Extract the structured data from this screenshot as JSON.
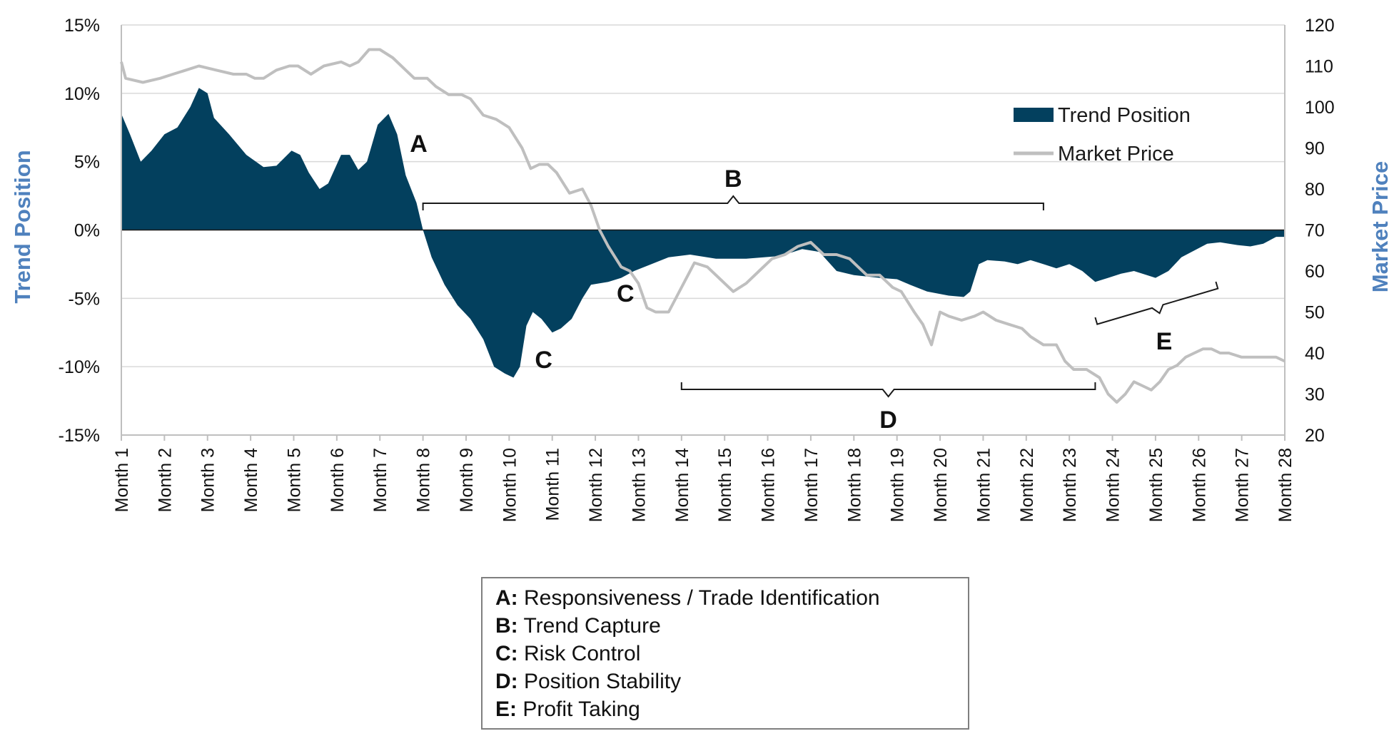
{
  "chart_data": {
    "type": "area+line",
    "x_categories": [
      "Month 1",
      "Month 2",
      "Month 3",
      "Month 4",
      "Month 5",
      "Month 6",
      "Month 7",
      "Month 8",
      "Month 9",
      "Month 10",
      "Month 11",
      "Month 12",
      "Month 13",
      "Month 14",
      "Month 15",
      "Month 16",
      "Month 17",
      "Month 18",
      "Month 19",
      "Month 20",
      "Month 21",
      "Month 22",
      "Month 23",
      "Month 24",
      "Month 25",
      "Month 26",
      "Month 27",
      "Month 28"
    ],
    "left_axis": {
      "label": "Trend Position",
      "ylim": [
        -0.15,
        0.15
      ],
      "ticks": [
        0.15,
        0.1,
        0.05,
        0.0,
        -0.05,
        -0.1,
        -0.15
      ],
      "tick_labels": [
        "15%",
        "10%",
        "5%",
        "0%",
        "-5%",
        "-10%",
        "-15%"
      ]
    },
    "right_axis": {
      "label": "Market Price",
      "ylim": [
        20,
        120
      ],
      "ticks": [
        120,
        110,
        100,
        90,
        80,
        70,
        60,
        50,
        40,
        30,
        20
      ],
      "tick_labels": [
        "120",
        "110",
        "100",
        "90",
        "80",
        "70",
        "60",
        "50",
        "40",
        "30",
        "20"
      ]
    },
    "grid": "horizontal",
    "legend_position": "top-right",
    "series": [
      {
        "name": "Trend Position",
        "type": "area",
        "axis": "left",
        "color": "#03405e",
        "points": [
          [
            1.0,
            0.085
          ],
          [
            1.2,
            0.07
          ],
          [
            1.45,
            0.05
          ],
          [
            1.7,
            0.058
          ],
          [
            2.0,
            0.07
          ],
          [
            2.3,
            0.075
          ],
          [
            2.6,
            0.09
          ],
          [
            2.8,
            0.104
          ],
          [
            3.0,
            0.1
          ],
          [
            3.15,
            0.082
          ],
          [
            3.5,
            0.07
          ],
          [
            3.9,
            0.055
          ],
          [
            4.3,
            0.046
          ],
          [
            4.6,
            0.047
          ],
          [
            4.95,
            0.058
          ],
          [
            5.15,
            0.055
          ],
          [
            5.35,
            0.042
          ],
          [
            5.6,
            0.03
          ],
          [
            5.8,
            0.034
          ],
          [
            6.1,
            0.055
          ],
          [
            6.3,
            0.055
          ],
          [
            6.5,
            0.044
          ],
          [
            6.7,
            0.05
          ],
          [
            6.95,
            0.077
          ],
          [
            7.2,
            0.085
          ],
          [
            7.4,
            0.07
          ],
          [
            7.6,
            0.04
          ],
          [
            7.85,
            0.02
          ],
          [
            8.0,
            0.0
          ],
          [
            8.2,
            -0.02
          ],
          [
            8.5,
            -0.04
          ],
          [
            8.8,
            -0.055
          ],
          [
            9.1,
            -0.065
          ],
          [
            9.4,
            -0.08
          ],
          [
            9.65,
            -0.1
          ],
          [
            9.9,
            -0.105
          ],
          [
            10.1,
            -0.108
          ],
          [
            10.25,
            -0.1
          ],
          [
            10.4,
            -0.07
          ],
          [
            10.55,
            -0.06
          ],
          [
            10.75,
            -0.065
          ],
          [
            11.0,
            -0.075
          ],
          [
            11.2,
            -0.072
          ],
          [
            11.45,
            -0.065
          ],
          [
            11.7,
            -0.05
          ],
          [
            11.9,
            -0.04
          ],
          [
            12.3,
            -0.038
          ],
          [
            12.6,
            -0.035
          ],
          [
            12.9,
            -0.03
          ],
          [
            13.3,
            -0.025
          ],
          [
            13.7,
            -0.02
          ],
          [
            14.2,
            -0.018
          ],
          [
            14.8,
            -0.021
          ],
          [
            15.5,
            -0.021
          ],
          [
            16.3,
            -0.019
          ],
          [
            16.8,
            -0.014
          ],
          [
            17.2,
            -0.016
          ],
          [
            17.6,
            -0.03
          ],
          [
            18.0,
            -0.033
          ],
          [
            18.6,
            -0.035
          ],
          [
            19.0,
            -0.036
          ],
          [
            19.3,
            -0.04
          ],
          [
            19.7,
            -0.045
          ],
          [
            20.2,
            -0.048
          ],
          [
            20.55,
            -0.049
          ],
          [
            20.7,
            -0.045
          ],
          [
            20.9,
            -0.025
          ],
          [
            21.1,
            -0.022
          ],
          [
            21.5,
            -0.023
          ],
          [
            21.8,
            -0.025
          ],
          [
            22.1,
            -0.022
          ],
          [
            22.4,
            -0.025
          ],
          [
            22.7,
            -0.028
          ],
          [
            23.0,
            -0.025
          ],
          [
            23.3,
            -0.03
          ],
          [
            23.6,
            -0.038
          ],
          [
            23.9,
            -0.035
          ],
          [
            24.2,
            -0.032
          ],
          [
            24.5,
            -0.03
          ],
          [
            24.8,
            -0.033
          ],
          [
            25.0,
            -0.035
          ],
          [
            25.3,
            -0.03
          ],
          [
            25.6,
            -0.02
          ],
          [
            25.9,
            -0.015
          ],
          [
            26.2,
            -0.01
          ],
          [
            26.5,
            -0.009
          ],
          [
            26.9,
            -0.011
          ],
          [
            27.2,
            -0.012
          ],
          [
            27.5,
            -0.01
          ],
          [
            27.8,
            -0.005
          ],
          [
            28.0,
            -0.005
          ]
        ]
      },
      {
        "name": "Market Price",
        "type": "line",
        "axis": "right",
        "color": "#bfbfbf",
        "points": [
          [
            1.0,
            111
          ],
          [
            1.1,
            107
          ],
          [
            1.5,
            106
          ],
          [
            1.9,
            107
          ],
          [
            2.2,
            108
          ],
          [
            2.5,
            109
          ],
          [
            2.8,
            110
          ],
          [
            3.2,
            109
          ],
          [
            3.6,
            108
          ],
          [
            3.9,
            108
          ],
          [
            4.1,
            107
          ],
          [
            4.3,
            107
          ],
          [
            4.6,
            109
          ],
          [
            4.9,
            110
          ],
          [
            5.1,
            110
          ],
          [
            5.4,
            108
          ],
          [
            5.7,
            110
          ],
          [
            6.1,
            111
          ],
          [
            6.3,
            110
          ],
          [
            6.5,
            111
          ],
          [
            6.75,
            114
          ],
          [
            7.0,
            114
          ],
          [
            7.3,
            112
          ],
          [
            7.6,
            109
          ],
          [
            7.8,
            107
          ],
          [
            8.1,
            107
          ],
          [
            8.3,
            105
          ],
          [
            8.6,
            103
          ],
          [
            8.9,
            103
          ],
          [
            9.1,
            102
          ],
          [
            9.4,
            98
          ],
          [
            9.7,
            97
          ],
          [
            10.0,
            95
          ],
          [
            10.3,
            90
          ],
          [
            10.5,
            85
          ],
          [
            10.7,
            86
          ],
          [
            10.9,
            86
          ],
          [
            11.1,
            84
          ],
          [
            11.4,
            79
          ],
          [
            11.7,
            80
          ],
          [
            11.9,
            76
          ],
          [
            12.1,
            70
          ],
          [
            12.3,
            66
          ],
          [
            12.6,
            61
          ],
          [
            12.8,
            60
          ],
          [
            13.0,
            57
          ],
          [
            13.2,
            51
          ],
          [
            13.4,
            50
          ],
          [
            13.7,
            50
          ],
          [
            14.0,
            56
          ],
          [
            14.3,
            62
          ],
          [
            14.6,
            61
          ],
          [
            14.9,
            58
          ],
          [
            15.2,
            55
          ],
          [
            15.5,
            57
          ],
          [
            15.8,
            60
          ],
          [
            16.1,
            63
          ],
          [
            16.4,
            64
          ],
          [
            16.7,
            66
          ],
          [
            17.0,
            67
          ],
          [
            17.3,
            64
          ],
          [
            17.6,
            64
          ],
          [
            17.9,
            63
          ],
          [
            18.1,
            61
          ],
          [
            18.3,
            59
          ],
          [
            18.6,
            59
          ],
          [
            18.9,
            56
          ],
          [
            19.1,
            55
          ],
          [
            19.4,
            50
          ],
          [
            19.6,
            47
          ],
          [
            19.8,
            42
          ],
          [
            20.0,
            50
          ],
          [
            20.2,
            49
          ],
          [
            20.5,
            48
          ],
          [
            20.8,
            49
          ],
          [
            21.0,
            50
          ],
          [
            21.3,
            48
          ],
          [
            21.6,
            47
          ],
          [
            21.9,
            46
          ],
          [
            22.1,
            44
          ],
          [
            22.4,
            42
          ],
          [
            22.7,
            42
          ],
          [
            22.9,
            38
          ],
          [
            23.1,
            36
          ],
          [
            23.4,
            36
          ],
          [
            23.7,
            34
          ],
          [
            23.9,
            30
          ],
          [
            24.1,
            28
          ],
          [
            24.3,
            30
          ],
          [
            24.5,
            33
          ],
          [
            24.7,
            32
          ],
          [
            24.9,
            31
          ],
          [
            25.1,
            33
          ],
          [
            25.3,
            36
          ],
          [
            25.5,
            37
          ],
          [
            25.7,
            39
          ],
          [
            25.9,
            40
          ],
          [
            26.1,
            41
          ],
          [
            26.3,
            41
          ],
          [
            26.5,
            40
          ],
          [
            26.7,
            40
          ],
          [
            27.0,
            39
          ],
          [
            27.3,
            39
          ],
          [
            27.6,
            39
          ],
          [
            27.8,
            39
          ],
          [
            28.0,
            38
          ]
        ]
      }
    ],
    "annotations": [
      {
        "letter": "A",
        "x": 8.0
      },
      {
        "letter": "B",
        "x_start": 8.0,
        "x_end": 22.4,
        "placement": "above zero line"
      },
      {
        "letter": "C",
        "x": 10.8
      },
      {
        "letter": "C",
        "x": 12.6
      },
      {
        "letter": "D",
        "x_start": 14.0,
        "x_end": 23.6,
        "placement": "below chart"
      },
      {
        "letter": "E",
        "x_start": 23.6,
        "x_end": 26.4,
        "placement": "rising bracket"
      }
    ]
  },
  "legend": {
    "items": [
      {
        "label": "Trend Position",
        "swatch": "area",
        "color": "#03405e"
      },
      {
        "label": "Market Price",
        "swatch": "line",
        "color": "#bfbfbf"
      }
    ]
  },
  "key": {
    "items": [
      {
        "letter": "A:",
        "text": " Responsiveness / Trade Identification"
      },
      {
        "letter": "B:",
        "text": " Trend Capture"
      },
      {
        "letter": "C:",
        "text": " Risk Control"
      },
      {
        "letter": "D:",
        "text": " Position Stability"
      },
      {
        "letter": "E:",
        "text": " Profit Taking"
      }
    ]
  },
  "colors": {
    "axis_title": "#4f81bd",
    "gridline": "#d9d9d9",
    "axis_line": "#bfbfbf"
  }
}
